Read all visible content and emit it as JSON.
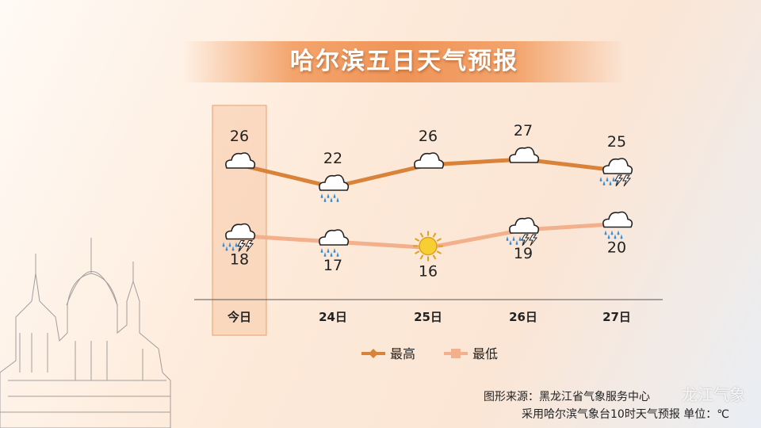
{
  "title": "哈尔滨五日天气预报",
  "credits": {
    "source": "图形来源：黑龙江省气象服务中心",
    "note": "采用哈尔滨气象台10时天气预报 单位：℃"
  },
  "watermark": "龙江气象",
  "colors": {
    "high": "#d9823a",
    "low": "#f2b08c",
    "highlight": "#f5c9a6",
    "title_bg": "#ef9458"
  },
  "chart_data": {
    "type": "line",
    "categories": [
      "今日",
      "24日",
      "25日",
      "26日",
      "27日"
    ],
    "highlight_category": "今日",
    "series": [
      {
        "name": "最高",
        "values": [
          26,
          22,
          26,
          27,
          25
        ],
        "weather": [
          "cloudy",
          "rain",
          "cloudy",
          "cloudy",
          "thunderstorm"
        ]
      },
      {
        "name": "最低",
        "values": [
          18,
          17,
          16,
          19,
          20
        ],
        "weather": [
          "thunderstorm",
          "rain",
          "sunny",
          "thunderstorm",
          "rain"
        ]
      }
    ],
    "ylim": [
      10,
      32
    ],
    "legend": "bottom-center",
    "grid": false
  }
}
